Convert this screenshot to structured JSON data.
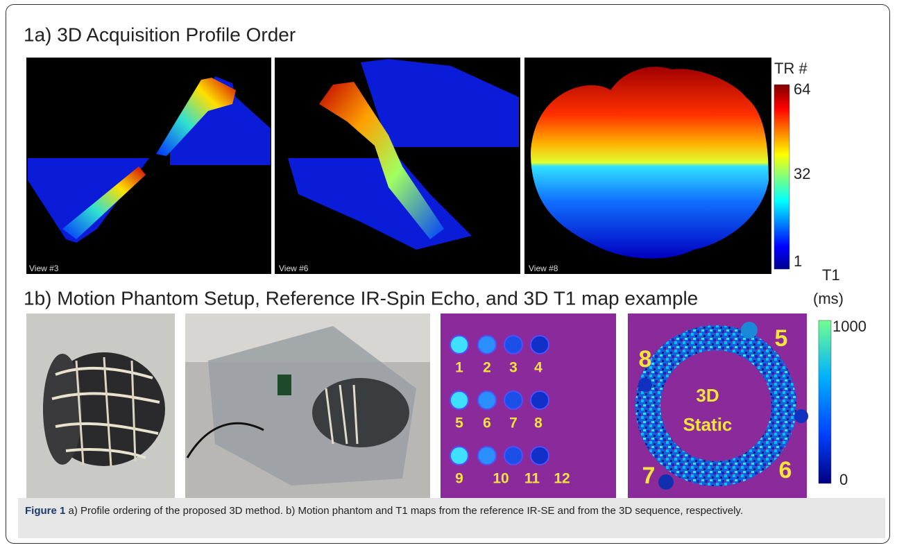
{
  "figure": {
    "panel_a": {
      "title": "1a) 3D Acquisition Profile Order",
      "views": [
        "View #3",
        "View #6",
        "View #8"
      ],
      "colorbar": {
        "title": "TR #",
        "ticks": [
          "64",
          "32",
          "1"
        ]
      }
    },
    "panel_b": {
      "title": "1b) Motion Phantom Setup, Reference IR-Spin Echo, and 3D T1 map example",
      "colorbar": {
        "title": [
          "T1",
          "(ms)"
        ],
        "ticks": [
          "1000",
          "0"
        ]
      },
      "ir_se_labels": [
        "1",
        "2",
        "3",
        "4",
        "5",
        "6",
        "7",
        "8",
        "9",
        "10",
        "11",
        "12"
      ],
      "static_labels": {
        "center": [
          "3D",
          "Static"
        ],
        "numbers": [
          "8",
          "5",
          "7",
          "6"
        ]
      }
    },
    "caption": {
      "label": "Figure 1",
      "text": "a) Profile ordering of the proposed 3D method. b) Motion phantom and T1 maps from the reference IR-SE and from the 3D sequence, respectively."
    }
  }
}
